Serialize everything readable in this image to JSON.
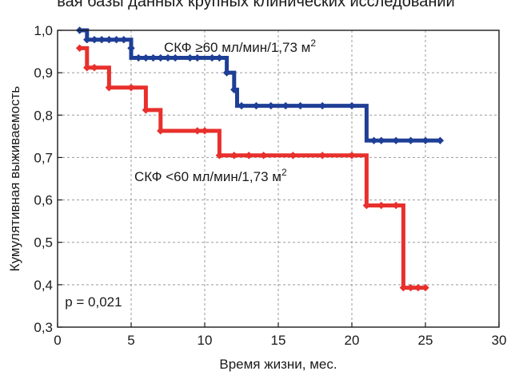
{
  "chart_data": {
    "type": "line",
    "title": "вая базы данных крупных клинических исследований",
    "xlabel": "Время жизни, мес.",
    "ylabel": "Кумулятивная выживаемость",
    "xlim": [
      0,
      30
    ],
    "ylim": [
      0.3,
      1.0
    ],
    "x_ticks": [
      "0",
      "5",
      "10",
      "15",
      "20",
      "25",
      "30"
    ],
    "y_ticks": [
      "0,3",
      "0,4",
      "0,5",
      "0,6",
      "0,7",
      "0,8",
      "0,9",
      "1,0"
    ],
    "grid": true,
    "series": [
      {
        "name": "СКФ ≥60 мл/мин/1,73 м²",
        "label_text": "СКФ ≥60 мл/мин/1,73 м",
        "label_sup": "2",
        "color": "#1f3f96",
        "x": [
          1.5,
          2.0,
          5.0,
          11.5,
          12.0,
          12.2,
          21.0,
          26.0
        ],
        "y": [
          1.0,
          0.978,
          0.935,
          0.9,
          0.86,
          0.822,
          0.74,
          0.74
        ],
        "censored_x": [
          1.5,
          2.0,
          2.5,
          3.0,
          3.5,
          4.0,
          4.5,
          5.0,
          5.5,
          6.0,
          6.5,
          7.0,
          7.5,
          8.0,
          9.0,
          9.5,
          10.5,
          11.0,
          11.5,
          12.0,
          12.5,
          13.5,
          14.5,
          15.5,
          16.5,
          18.0,
          20.0,
          21.5,
          22.0,
          23.0,
          24.0,
          25.0,
          26.0
        ],
        "censored_y": [
          1.0,
          0.978,
          0.978,
          0.978,
          0.978,
          0.978,
          0.978,
          0.958,
          0.935,
          0.935,
          0.935,
          0.935,
          0.935,
          0.935,
          0.935,
          0.935,
          0.935,
          0.935,
          0.9,
          0.86,
          0.822,
          0.822,
          0.822,
          0.822,
          0.822,
          0.822,
          0.822,
          0.74,
          0.74,
          0.74,
          0.74,
          0.74,
          0.74
        ]
      },
      {
        "name": "СКФ <60 мл/мин/1,73 м²",
        "label_text": "СКФ <60 мл/мин/1,73 м",
        "label_sup": "2",
        "color": "#e8302c",
        "x": [
          1.5,
          2.0,
          3.5,
          6.0,
          7.0,
          11.0,
          21.0,
          23.5,
          25.0
        ],
        "y": [
          0.958,
          0.912,
          0.865,
          0.812,
          0.763,
          0.705,
          0.587,
          0.393,
          0.393
        ],
        "censored_x": [
          1.5,
          2.0,
          2.5,
          3.5,
          5.0,
          6.0,
          7.0,
          9.5,
          10.0,
          11.0,
          12.0,
          13.0,
          14.0,
          16.0,
          18.0,
          20.0,
          21.0,
          22.0,
          23.0,
          23.5,
          24.0,
          24.5,
          25.0
        ],
        "censored_y": [
          0.958,
          0.912,
          0.912,
          0.865,
          0.865,
          0.812,
          0.763,
          0.763,
          0.763,
          0.705,
          0.705,
          0.705,
          0.705,
          0.705,
          0.705,
          0.705,
          0.587,
          0.587,
          0.587,
          0.393,
          0.393,
          0.393,
          0.393
        ]
      }
    ],
    "annotations": [
      {
        "text": "p = 0,021",
        "x": 0.5,
        "y": 0.36
      }
    ]
  }
}
